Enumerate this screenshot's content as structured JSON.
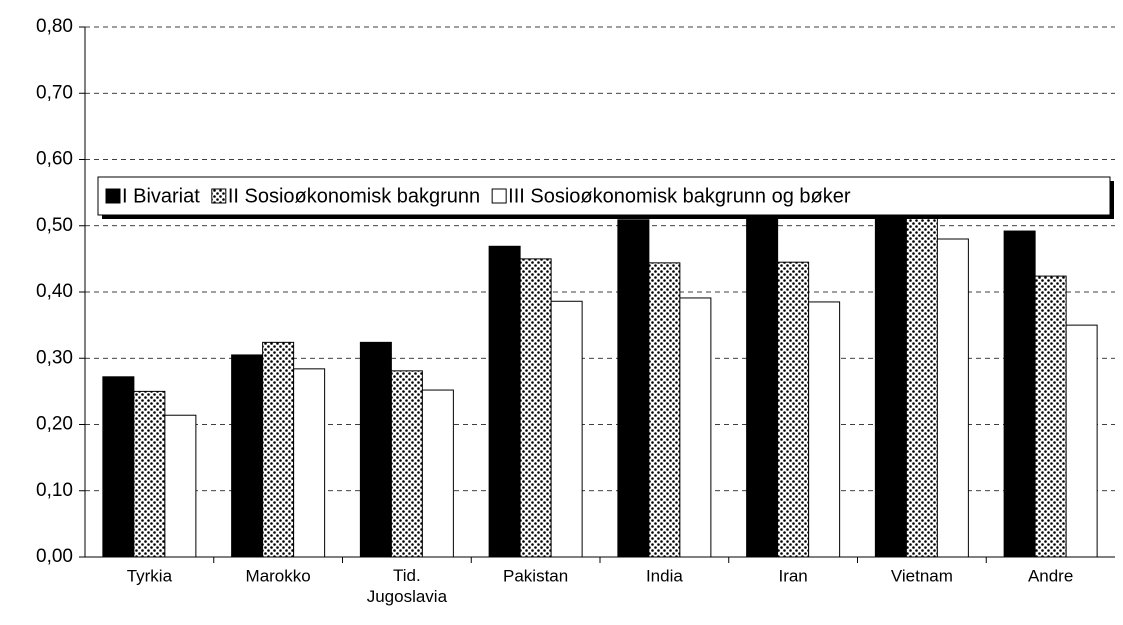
{
  "chart_data": {
    "type": "bar",
    "categories": [
      "Tyrkia",
      "Marokko",
      "Tid. Jugoslavia",
      "Pakistan",
      "India",
      "Iran",
      "Vietnam",
      "Andre"
    ],
    "series": [
      {
        "name": "I Bivariat",
        "color": "#000000",
        "values": [
          0.272,
          0.305,
          0.324,
          0.469,
          0.509,
          0.511,
          0.559,
          0.492
        ]
      },
      {
        "name": "II Sosioøkonomisk bakgrunn",
        "color": "#000000",
        "pattern": "dots",
        "values": [
          0.25,
          0.324,
          0.281,
          0.45,
          0.444,
          0.445,
          0.53,
          0.424
        ]
      },
      {
        "name": "III Sosioøkonomisk bakgrunn og bøker",
        "color": "#ffffff",
        "values": [
          0.214,
          0.284,
          0.252,
          0.386,
          0.391,
          0.385,
          0.48,
          0.35
        ]
      }
    ],
    "ylim": [
      0,
      0.8
    ],
    "yticks": [
      {
        "value": 0,
        "label": "0,00"
      },
      {
        "value": 0.1,
        "label": "0,10"
      },
      {
        "value": 0.2,
        "label": "0,20"
      },
      {
        "value": 0.3,
        "label": "0,30"
      },
      {
        "value": 0.4,
        "label": "0,40"
      },
      {
        "value": 0.5,
        "label": "0,50"
      },
      {
        "value": 0.6,
        "label": "0,60"
      },
      {
        "value": 0.7,
        "label": "0,70"
      },
      {
        "value": 0.8,
        "label": "0,80"
      }
    ],
    "grid": true,
    "legend": "top"
  }
}
